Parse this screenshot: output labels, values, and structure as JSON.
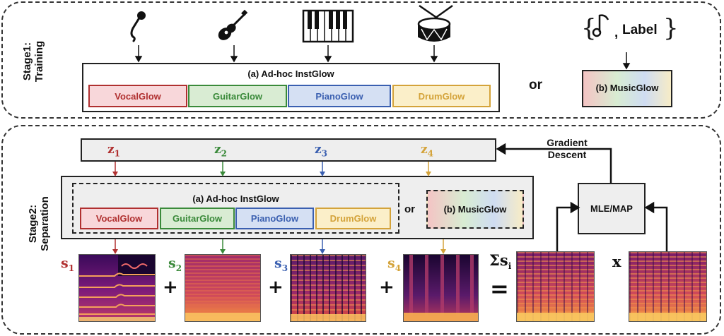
{
  "stage1": {
    "label_line1": "Stage1:",
    "label_line2": "Training",
    "adhoc_title": "(a) Ad-hoc InstGlow",
    "or_text": "or",
    "label_brace_open": "{",
    "label_brace_close": "}",
    "label_comma": ",",
    "label_text": "Label",
    "musicglow_title": "(b) MusicGlow",
    "instruments": [
      "microphone-icon",
      "guitar-icon",
      "piano-icon",
      "drum-icon"
    ]
  },
  "stage2": {
    "label_line1": "Stage2:",
    "label_line2": "Separation",
    "gradient_line1": "Gradient",
    "gradient_line2": "Descent",
    "adhoc_title": "(a) Ad-hoc InstGlow",
    "or_text": "or",
    "musicglow_title": "(b) MusicGlow",
    "mle_map": "MLE/MAP",
    "latents": [
      {
        "base": "z",
        "sub": "1"
      },
      {
        "base": "z",
        "sub": "2"
      },
      {
        "base": "z",
        "sub": "3"
      },
      {
        "base": "z",
        "sub": "4"
      }
    ],
    "sources": [
      {
        "base": "s",
        "sub": "1"
      },
      {
        "base": "s",
        "sub": "2"
      },
      {
        "base": "s",
        "sub": "3"
      },
      {
        "base": "s",
        "sub": "4"
      }
    ],
    "plus": "+",
    "equals": "=",
    "sum_symbol": "Σ",
    "sum_base": "s",
    "sum_sub": "i",
    "mixture_label": "x"
  },
  "glows": [
    "VocalGlow",
    "GuitarGlow",
    "PianoGlow",
    "DrumGlow"
  ],
  "colors": {
    "vocal": "#b03030",
    "vocal_bg": "#f8d7da",
    "guitar": "#3a8a3a",
    "guitar_bg": "#d9ecd3",
    "piano": "#3a5fb0",
    "piano_bg": "#d5e0f3",
    "drum": "#d4a33a",
    "drum_bg": "#fbefc9"
  }
}
